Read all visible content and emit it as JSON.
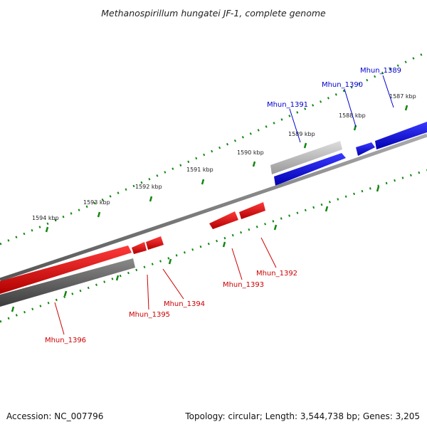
{
  "title": "Methanospirillum hungatei JF-1, complete genome",
  "footer": {
    "accession": "Accession: NC_007796",
    "summary": "Topology: circular; Length: 3,544,738 bp; Genes: 3,205"
  },
  "ticks": [
    "1587 kbp",
    "1588 kbp",
    "1589 kbp",
    "1590 kbp",
    "1591 kbp",
    "1592 kbp",
    "1593 kbp",
    "1594 kbp"
  ],
  "genes": [
    {
      "label": "Mhun_1389",
      "strand": "forward",
      "color": "#0000cc"
    },
    {
      "label": "Mhun_1390",
      "strand": "forward",
      "color": "#0000cc"
    },
    {
      "label": "Mhun_1391",
      "strand": "forward",
      "color": "#0000cc"
    },
    {
      "label": "Mhun_1392",
      "strand": "reverse",
      "color": "#cc0000"
    },
    {
      "label": "Mhun_1393",
      "strand": "reverse",
      "color": "#cc0000"
    },
    {
      "label": "Mhun_1394",
      "strand": "reverse",
      "color": "#cc0000"
    },
    {
      "label": "Mhun_1395",
      "strand": "reverse",
      "color": "#cc0000"
    },
    {
      "label": "Mhun_1396",
      "strand": "reverse",
      "color": "#cc0000"
    }
  ],
  "colors": {
    "forward_gene": "#0000ee",
    "reverse_gene": "#ee0000",
    "rna_feature": "#666666",
    "pseudo_feature": "#aaaaaa",
    "backbone": "#777777",
    "tick": "#118811"
  }
}
